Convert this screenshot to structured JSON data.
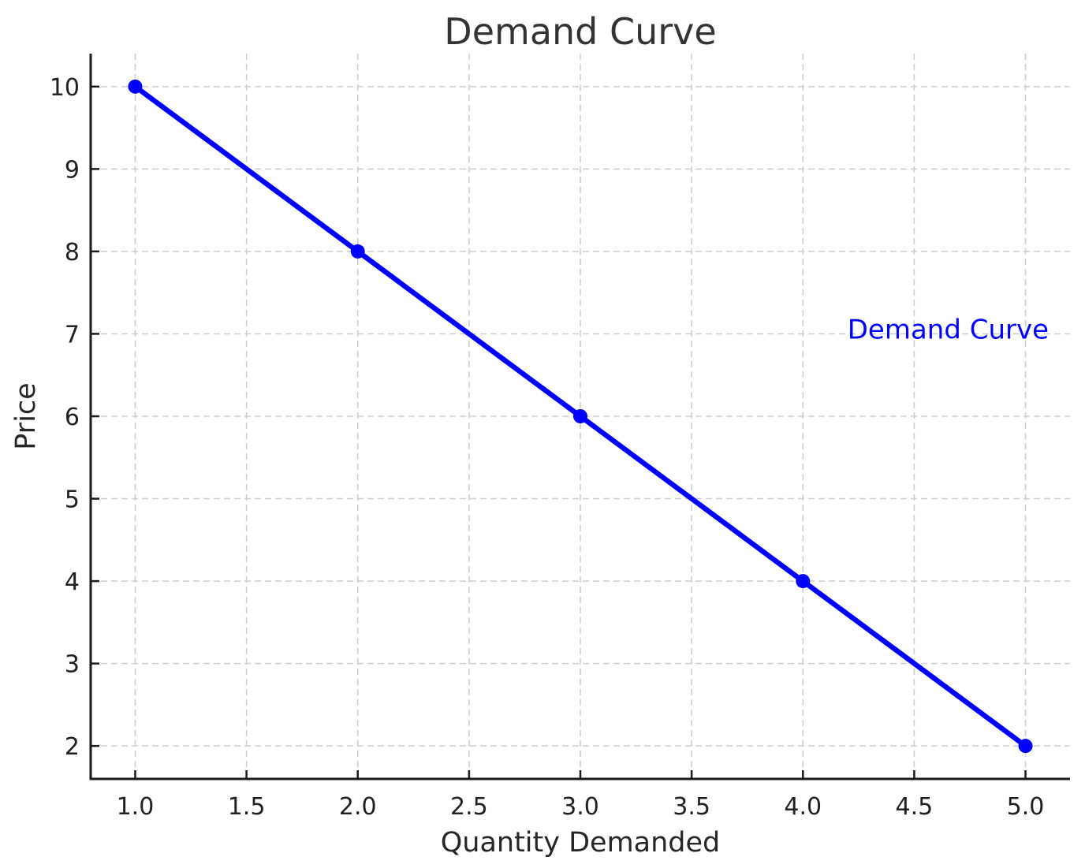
{
  "chart_data": {
    "type": "line",
    "title": "Demand Curve",
    "xlabel": "Quantity Demanded",
    "ylabel": "Price",
    "x": [
      1,
      2,
      3,
      4,
      5
    ],
    "series": [
      {
        "name": "Demand Curve",
        "values": [
          10,
          8,
          6,
          4,
          2
        ],
        "color": "#0000ff",
        "marker": "circle",
        "line_width": 6.5,
        "marker_radius": 9
      }
    ],
    "annotation": {
      "text": "Demand Curve",
      "x": 4.2,
      "y": 7,
      "color": "#0000ff"
    },
    "xlim": [
      0.8,
      5.2
    ],
    "ylim": [
      1.6,
      10.4
    ],
    "xticks": {
      "values": [
        1.0,
        1.5,
        2.0,
        2.5,
        3.0,
        3.5,
        4.0,
        4.5,
        5.0
      ],
      "labels": [
        "1.0",
        "1.5",
        "2.0",
        "2.5",
        "3.0",
        "3.5",
        "4.0",
        "4.5",
        "5.0"
      ]
    },
    "yticks": {
      "values": [
        2,
        3,
        4,
        5,
        6,
        7,
        8,
        9,
        10
      ],
      "labels": [
        "2",
        "3",
        "4",
        "5",
        "6",
        "7",
        "8",
        "9",
        "10"
      ]
    },
    "grid": {
      "on": true,
      "style": "dashed",
      "color": "#cccccc"
    },
    "legend_position": "none",
    "colors": {
      "line": "#0000ff",
      "grid": "#cccccc",
      "spine": "#1a1a1a",
      "title": "#333333",
      "axis_text": "#262626",
      "background": "#ffffff"
    }
  }
}
